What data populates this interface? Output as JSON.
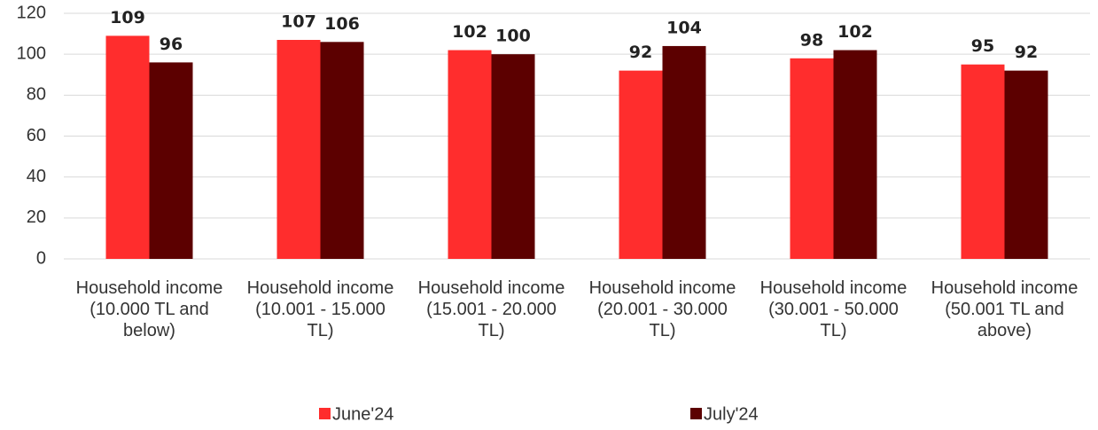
{
  "chart_data": {
    "type": "bar",
    "categories": [
      "Household income (10.000 TL and below)",
      "Household income (10.001 - 15.000 TL)",
      "Household income (15.001 - 20.000 TL)",
      "Household income (20.001 - 30.000 TL)",
      "Household income (30.001 - 50.000 TL)",
      "Household income (50.001 TL and above)"
    ],
    "series": [
      {
        "name": "June'24",
        "color": "#ff2d2d",
        "values": [
          109,
          107,
          102,
          92,
          98,
          95
        ]
      },
      {
        "name": "July'24",
        "color": "#5c0000",
        "values": [
          96,
          106,
          100,
          104,
          102,
          92
        ]
      }
    ],
    "ylim": [
      0,
      120
    ],
    "yticks": [
      0,
      20,
      40,
      60,
      80,
      100,
      120
    ],
    "grid": true,
    "legend": "bottom"
  }
}
